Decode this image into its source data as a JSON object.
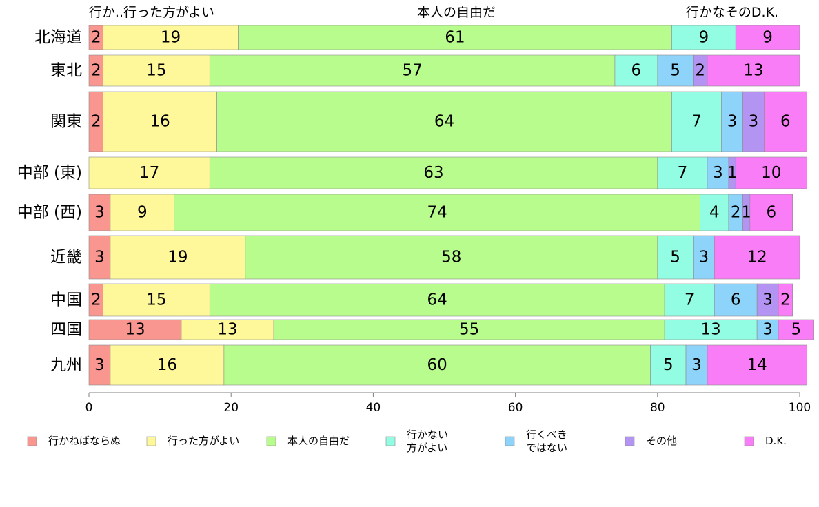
{
  "chart_data": {
    "type": "bar",
    "orientation": "horizontal",
    "stacked": true,
    "variable_width": true,
    "categories": [
      "北海道",
      "東北",
      "関東",
      "中部 (東)",
      "中部 (西)",
      "近畿",
      "中国",
      "四国",
      "九州"
    ],
    "column_labels": [
      "行か..行った方がよい",
      "本人の自由だ",
      "行かなそのD.K."
    ],
    "series": [
      {
        "name": "行かねばならぬ",
        "color": "#F8968F",
        "values": [
          2,
          2,
          2,
          0,
          3,
          3,
          2,
          13,
          3
        ],
        "labels": [
          "2",
          "2",
          "2",
          "",
          "3",
          "3",
          "2",
          "13",
          "3"
        ]
      },
      {
        "name": "行った方がよい",
        "color": "#FFF89B",
        "values": [
          19,
          15,
          16,
          17,
          9,
          19,
          15,
          13,
          16
        ],
        "labels": [
          "19",
          "15",
          "16",
          "17",
          "9",
          "19",
          "15",
          "13",
          "16"
        ]
      },
      {
        "name": "本人の自由だ",
        "color": "#B9FC8E",
        "values": [
          61,
          57,
          64,
          63,
          74,
          58,
          64,
          55,
          60
        ],
        "labels": [
          "61",
          "57",
          "64",
          "63",
          "74",
          "58",
          "64",
          "55",
          "60"
        ]
      },
      {
        "name": "行かない\n方がよい",
        "color": "#93FDE3",
        "values": [
          9,
          6,
          7,
          7,
          4,
          5,
          7,
          13,
          5
        ],
        "labels": [
          "9",
          "6",
          "7",
          "7",
          "4",
          "5",
          "7",
          "13",
          "5"
        ]
      },
      {
        "name": "行くべき\nではない",
        "color": "#8ED4FA",
        "values": [
          0,
          5,
          3,
          3,
          2,
          3,
          6,
          3,
          3
        ],
        "labels": [
          "",
          "5",
          "3",
          "3",
          "2",
          "3",
          "6",
          "3",
          "3"
        ]
      },
      {
        "name": "その他",
        "color": "#B494F2",
        "values": [
          0,
          2,
          3,
          1,
          1,
          0,
          3,
          0,
          0
        ],
        "labels": [
          "",
          "2",
          "3",
          "1",
          "1",
          "",
          "3",
          "",
          ""
        ]
      },
      {
        "name": "D.K.",
        "color": "#F97DF6",
        "values": [
          9,
          13,
          6,
          10,
          6,
          12,
          2,
          5,
          14
        ],
        "labels": [
          "9",
          "13",
          "6",
          "10",
          "6",
          "12",
          "2",
          "5",
          "14"
        ]
      }
    ],
    "xlim": [
      0,
      100
    ],
    "xticks": [
      "0",
      "20",
      "40",
      "60",
      "80",
      "100"
    ],
    "legend_position": "bottom",
    "grid": false
  }
}
